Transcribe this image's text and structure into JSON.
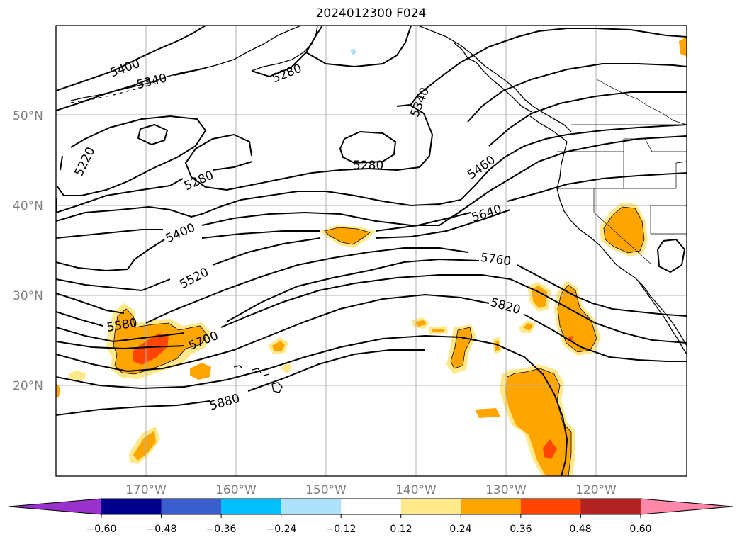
{
  "title": "2024012300 F024",
  "axes": {
    "lat_labels": [
      "50°N",
      "40°N",
      "30°N",
      "20°N"
    ],
    "lon_labels": [
      "170°W",
      "160°W",
      "150°W",
      "140°W",
      "130°W",
      "120°W"
    ]
  },
  "contours": {
    "levels_labeled": [
      "5400",
      "5340",
      "5280",
      "5340",
      "5220",
      "5280",
      "5280",
      "5460",
      "5400",
      "5640",
      "5520",
      "5760",
      "5580",
      "5700",
      "5820",
      "5880"
    ]
  },
  "colorbar": {
    "ticks": [
      "−0.60",
      "−0.48",
      "−0.36",
      "−0.24",
      "−0.12",
      "0.12",
      "0.24",
      "0.36",
      "0.48",
      "0.60"
    ],
    "colors": [
      "#9932cc",
      "#00008b",
      "#3a5fcd",
      "#00bfff",
      "#aee2fa",
      "#ffffff",
      "#ffe98a",
      "#ffa500",
      "#ff4500",
      "#b22222",
      "#ff88aa"
    ]
  }
}
